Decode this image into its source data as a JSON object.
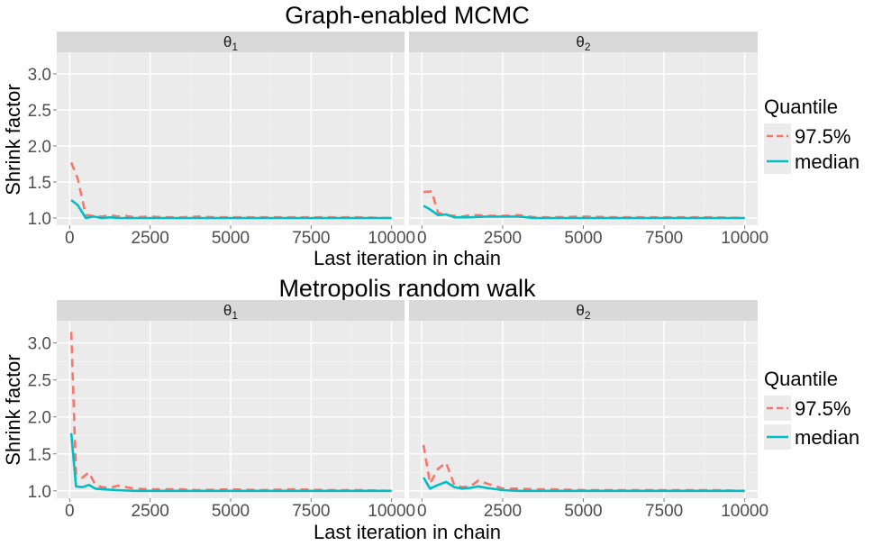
{
  "chart_data": [
    {
      "type": "line",
      "title": "Graph-enabled MCMC",
      "xlabel": "Last iteration in chain",
      "ylabel": "Shrink factor",
      "xlim": [
        -400,
        10400
      ],
      "ylim": [
        0.9,
        3.3
      ],
      "x_ticks": [
        0,
        2500,
        5000,
        7500,
        10000
      ],
      "x_tick_labels": [
        "0",
        "2500",
        "5000",
        "7500",
        "10000"
      ],
      "y_ticks": [
        1.0,
        1.5,
        2.0,
        2.5,
        3.0
      ],
      "y_tick_labels": [
        "1.0",
        "1.5",
        "2.0",
        "2.5",
        "3.0"
      ],
      "legend": {
        "title": "Quantile",
        "placement": "right",
        "entries": [
          {
            "label": "97.5%",
            "color": "#F8766D",
            "style": "dashed"
          },
          {
            "label": "median",
            "color": "#00BFC4",
            "style": "solid"
          }
        ]
      },
      "facets": [
        {
          "label_symbol": "θ",
          "label_sub": "1",
          "series": [
            {
              "name": "97.5%",
              "color": "#F8766D",
              "style": "dashed",
              "x": [
                50,
                250,
                500,
                750,
                1000,
                1250,
                1500,
                1750,
                2000,
                2500,
                3000,
                3500,
                4000,
                4500,
                5000,
                6000,
                7000,
                8000,
                9000,
                10000
              ],
              "y": [
                1.77,
                1.55,
                1.04,
                1.03,
                1.02,
                1.04,
                1.02,
                1.03,
                1.01,
                1.02,
                1.01,
                1.01,
                1.02,
                1.01,
                1.01,
                1.01,
                1.01,
                1.01,
                1.01,
                1.0
              ]
            },
            {
              "name": "median",
              "color": "#00BFC4",
              "style": "solid",
              "x": [
                50,
                250,
                500,
                750,
                1000,
                1250,
                1500,
                2000,
                3000,
                4000,
                5000,
                6000,
                7000,
                8000,
                9000,
                10000
              ],
              "y": [
                1.25,
                1.18,
                1.0,
                1.02,
                1.0,
                1.01,
                1.0,
                1.0,
                1.0,
                1.0,
                1.0,
                1.0,
                1.0,
                1.0,
                1.0,
                1.0
              ]
            }
          ]
        },
        {
          "label_symbol": "θ",
          "label_sub": "2",
          "series": [
            {
              "name": "97.5%",
              "color": "#F8766D",
              "style": "dashed",
              "x": [
                50,
                300,
                500,
                750,
                1000,
                1250,
                1500,
                1750,
                2000,
                2500,
                3000,
                3500,
                4000,
                5000,
                6000,
                7000,
                8000,
                9000,
                10000
              ],
              "y": [
                1.36,
                1.37,
                1.07,
                1.04,
                1.03,
                1.02,
                1.04,
                1.04,
                1.03,
                1.03,
                1.04,
                1.01,
                1.01,
                1.02,
                1.01,
                1.01,
                1.01,
                1.01,
                1.0
              ]
            },
            {
              "name": "median",
              "color": "#00BFC4",
              "style": "solid",
              "x": [
                50,
                250,
                500,
                750,
                1000,
                1500,
                2000,
                2500,
                3000,
                3500,
                4000,
                5000,
                6000,
                7000,
                8000,
                9000,
                10000
              ],
              "y": [
                1.17,
                1.12,
                1.04,
                1.05,
                1.01,
                1.01,
                1.02,
                1.02,
                1.02,
                1.0,
                1.0,
                1.0,
                1.0,
                1.0,
                1.0,
                1.0,
                1.0
              ]
            }
          ]
        }
      ]
    },
    {
      "type": "line",
      "title": "Metropolis random walk",
      "xlabel": "Last iteration in chain",
      "ylabel": "Shrink factor",
      "xlim": [
        -400,
        10400
      ],
      "ylim": [
        0.9,
        3.3
      ],
      "x_ticks": [
        0,
        2500,
        5000,
        7500,
        10000
      ],
      "x_tick_labels": [
        "0",
        "2500",
        "5000",
        "7500",
        "10000"
      ],
      "y_ticks": [
        1.0,
        1.5,
        2.0,
        2.5,
        3.0
      ],
      "y_tick_labels": [
        "1.0",
        "1.5",
        "2.0",
        "2.5",
        "3.0"
      ],
      "legend": {
        "title": "Quantile",
        "placement": "right",
        "entries": [
          {
            "label": "97.5%",
            "color": "#F8766D",
            "style": "dashed"
          },
          {
            "label": "median",
            "color": "#00BFC4",
            "style": "solid"
          }
        ]
      },
      "facets": [
        {
          "label_symbol": "θ",
          "label_sub": "1",
          "series": [
            {
              "name": "97.5%",
              "color": "#F8766D",
              "style": "dashed",
              "x": [
                50,
                200,
                400,
                600,
                800,
                1000,
                1250,
                1500,
                1750,
                2000,
                2500,
                3000,
                3500,
                4000,
                5000,
                6000,
                7000,
                8000,
                9000,
                10000
              ],
              "y": [
                3.15,
                1.22,
                1.18,
                1.25,
                1.08,
                1.05,
                1.04,
                1.07,
                1.05,
                1.03,
                1.02,
                1.02,
                1.02,
                1.01,
                1.02,
                1.01,
                1.02,
                1.01,
                1.01,
                1.0
              ]
            },
            {
              "name": "median",
              "color": "#00BFC4",
              "style": "solid",
              "x": [
                50,
                200,
                400,
                600,
                800,
                1000,
                1500,
                2000,
                3000,
                4000,
                5000,
                6000,
                7000,
                8000,
                9000,
                10000
              ],
              "y": [
                1.78,
                1.06,
                1.05,
                1.08,
                1.03,
                1.02,
                1.01,
                1.0,
                1.0,
                1.0,
                1.0,
                1.0,
                1.0,
                1.0,
                1.0,
                1.0
              ]
            }
          ]
        },
        {
          "label_symbol": "θ",
          "label_sub": "2",
          "series": [
            {
              "name": "97.5%",
              "color": "#F8766D",
              "style": "dashed",
              "x": [
                50,
                250,
                500,
                750,
                1000,
                1250,
                1500,
                1750,
                2000,
                2250,
                2500,
                3000,
                3500,
                4000,
                5000,
                6000,
                7000,
                8000,
                9000,
                10000
              ],
              "y": [
                1.62,
                1.1,
                1.3,
                1.38,
                1.08,
                1.05,
                1.06,
                1.14,
                1.1,
                1.07,
                1.03,
                1.03,
                1.02,
                1.02,
                1.01,
                1.01,
                1.01,
                1.01,
                1.01,
                1.0
              ]
            },
            {
              "name": "median",
              "color": "#00BFC4",
              "style": "solid",
              "x": [
                50,
                250,
                500,
                750,
                1000,
                1250,
                1500,
                1750,
                2000,
                2500,
                3000,
                4000,
                5000,
                6000,
                7000,
                8000,
                9000,
                10000
              ],
              "y": [
                1.18,
                1.03,
                1.08,
                1.12,
                1.05,
                1.03,
                1.04,
                1.06,
                1.04,
                1.01,
                1.0,
                1.0,
                1.0,
                1.0,
                1.0,
                1.0,
                1.0,
                1.0
              ]
            }
          ]
        }
      ]
    }
  ]
}
